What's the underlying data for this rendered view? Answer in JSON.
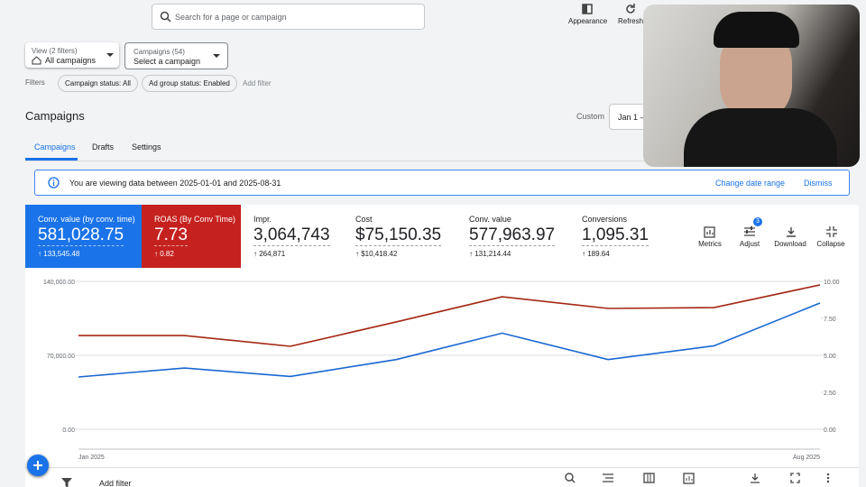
{
  "search": {
    "placeholder": "Search for a page or campaign"
  },
  "toolbar": [
    "Appearance",
    "Refresh"
  ],
  "selectors": [
    {
      "label": "View (2 filters)",
      "value": "All campaigns"
    },
    {
      "label": "Campaigns (54)",
      "value": "Select a campaign"
    }
  ],
  "filters": {
    "label": "Filters",
    "chips": [
      "Campaign status: All",
      "Ad group status: Enabled"
    ],
    "add": "Add filter"
  },
  "page": {
    "title": "Campaigns",
    "date_mode": "Custom",
    "date_range": "Jan 1 –"
  },
  "tabs": [
    "Campaigns",
    "Drafts",
    "Settings"
  ],
  "banner": {
    "text": "You are viewing data between 2025-01-01 and 2025-08-31",
    "actions": [
      "Change date range",
      "Dismiss"
    ]
  },
  "cards": [
    {
      "label": "Conv. value (by conv. time)",
      "value": "581,028.75",
      "delta": "↑ 133,545.48",
      "color": "#1a73e8"
    },
    {
      "label": "ROAS (By Conv Time)",
      "value": "7.73",
      "delta": "↑ 0.82",
      "color": "#c5221f"
    },
    {
      "label": "Impr.",
      "value": "3,064,743",
      "delta": "↑ 264,871"
    },
    {
      "label": "Cost",
      "value": "$75,150.35",
      "delta": "↑ $10,418.42"
    },
    {
      "label": "Conv. value",
      "value": "577,963.97",
      "delta": "↑ 131,214.44"
    },
    {
      "label": "Conversions",
      "value": "1,095.31",
      "delta": "↑ 189.64"
    }
  ],
  "tools": {
    "buttons": [
      "Metrics",
      "Adjust",
      "Download",
      "Collapse"
    ],
    "badge": "3"
  },
  "chart_data": {
    "type": "line",
    "categories": [
      "Jan 2025",
      null,
      null,
      null,
      null,
      null,
      null,
      "Aug 2025"
    ],
    "series": [
      {
        "color": "#1967d2",
        "values": [
          49500,
          58000,
          50000,
          66000,
          91000,
          66000,
          79000,
          119500
        ]
      },
      {
        "color": "#a52714",
        "axis": "y2",
        "values": [
          6.34,
          6.34,
          5.61,
          7.26,
          8.96,
          8.17,
          8.23,
          9.76
        ]
      }
    ],
    "ylim": [
      0,
      140000
    ],
    "yticks": [
      {
        "value": 0,
        "label": "0.00"
      },
      {
        "value": 70000,
        "label": "70,000.00"
      },
      {
        "value": 140000,
        "label": "140,000.00"
      }
    ],
    "y2lim": [
      0,
      10
    ],
    "y2ticks": [
      {
        "value": 0,
        "label": "0.00"
      },
      {
        "value": 2.5,
        "label": "2.50"
      },
      {
        "value": 5,
        "label": "5.00"
      },
      {
        "value": 7.5,
        "label": "7.50"
      },
      {
        "value": 10,
        "label": "10.00"
      }
    ],
    "grid": true
  },
  "table_toolbar": {
    "add_filter": "Add filter"
  }
}
